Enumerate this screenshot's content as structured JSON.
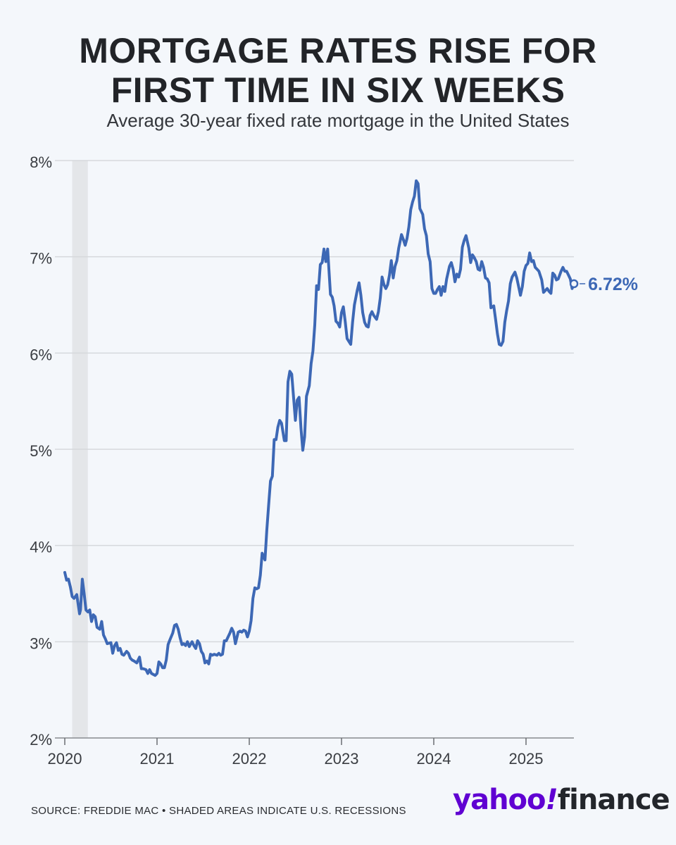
{
  "header": {
    "title_line1": "MORTGAGE RATES RISE FOR",
    "title_line2": "FIRST TIME IN SIX WEEKS",
    "subtitle": "Average 30-year fixed rate mortgage in the United States"
  },
  "footer": {
    "source": "SOURCE: FREDDIE MAC • SHADED AREAS INDICATE U.S. RECESSIONS",
    "logo_yahoo": "yahoo",
    "logo_slash": "!",
    "logo_finance": "finance"
  },
  "colors": {
    "line": "#3d68b5",
    "grid": "#d6d8dc",
    "recession": "#e4e6e9",
    "brand": "#6001d2"
  },
  "chart_data": {
    "type": "line",
    "title": "MORTGAGE RATES RISE FOR FIRST TIME IN SIX WEEKS",
    "subtitle": "Average 30-year fixed rate mortgage in the United States",
    "xlabel": "",
    "ylabel": "",
    "ylim": [
      2,
      8
    ],
    "xlim": [
      2020.0,
      2025.55
    ],
    "grid": "horizontal",
    "y_ticks": [
      {
        "value": 2,
        "label": "2%"
      },
      {
        "value": 3,
        "label": "3%"
      },
      {
        "value": 4,
        "label": "4%"
      },
      {
        "value": 5,
        "label": "5%"
      },
      {
        "value": 6,
        "label": "6%"
      },
      {
        "value": 7,
        "label": "7%"
      },
      {
        "value": 8,
        "label": "8%"
      }
    ],
    "x_ticks": [
      {
        "value": 2020,
        "label": "2020"
      },
      {
        "value": 2021,
        "label": "2021"
      },
      {
        "value": 2022,
        "label": "2022"
      },
      {
        "value": 2023,
        "label": "2023"
      },
      {
        "value": 2024,
        "label": "2024"
      },
      {
        "value": 2025,
        "label": "2025"
      }
    ],
    "recessions": [
      {
        "start": 2020.08,
        "end": 2020.25
      }
    ],
    "end_label": "6.72%",
    "end_value": 6.72,
    "series": [
      {
        "x": [
          2020.0,
          2020.02,
          2020.04,
          2020.06,
          2020.08,
          2020.1,
          2020.13,
          2020.16,
          2020.17,
          2020.19,
          2020.21,
          2020.23,
          2020.25,
          2020.27,
          2020.29,
          2020.31,
          2020.33,
          2020.35,
          2020.38,
          2020.4,
          2020.42,
          2020.44,
          2020.46,
          2020.5,
          2020.52,
          2020.54,
          2020.56,
          2020.58,
          2020.6,
          2020.62,
          2020.64,
          2020.67,
          2020.69,
          2020.71,
          2020.73,
          2020.75,
          2020.78,
          2020.81,
          2020.83,
          2020.85,
          2020.88,
          2020.9,
          2020.92,
          2020.94,
          2020.96,
          2020.98,
          2021.0,
          2021.02,
          2021.04,
          2021.06,
          2021.08,
          2021.1,
          2021.12,
          2021.14,
          2021.17,
          2021.19,
          2021.21,
          2021.23,
          2021.25,
          2021.27,
          2021.29,
          2021.31,
          2021.33,
          2021.35,
          2021.38,
          2021.4,
          2021.42,
          2021.44,
          2021.46,
          2021.48,
          2021.5,
          2021.52,
          2021.54,
          2021.56,
          2021.58,
          2021.6,
          2021.62,
          2021.65,
          2021.67,
          2021.69,
          2021.71,
          2021.73,
          2021.75,
          2021.77,
          2021.79,
          2021.81,
          2021.83,
          2021.85,
          2021.88,
          2021.9,
          2021.92,
          2021.94,
          2021.96,
          2021.98,
          2022.0,
          2022.02,
          2022.04,
          2022.06,
          2022.08,
          2022.1,
          2022.12,
          2022.14,
          2022.17,
          2022.19,
          2022.21,
          2022.23,
          2022.25,
          2022.27,
          2022.29,
          2022.31,
          2022.33,
          2022.35,
          2022.38,
          2022.4,
          2022.42,
          2022.44,
          2022.46,
          2022.48,
          2022.5,
          2022.52,
          2022.54,
          2022.56,
          2022.58,
          2022.6,
          2022.62,
          2022.65,
          2022.67,
          2022.69,
          2022.71,
          2022.73,
          2022.75,
          2022.77,
          2022.79,
          2022.81,
          2022.83,
          2022.85,
          2022.88,
          2022.9,
          2022.92,
          2022.94,
          2022.96,
          2022.98,
          2023.0,
          2023.02,
          2023.04,
          2023.06,
          2023.08,
          2023.1,
          2023.12,
          2023.14,
          2023.17,
          2023.19,
          2023.21,
          2023.23,
          2023.25,
          2023.27,
          2023.29,
          2023.31,
          2023.33,
          2023.35,
          2023.38,
          2023.4,
          2023.42,
          2023.44,
          2023.46,
          2023.48,
          2023.5,
          2023.52,
          2023.54,
          2023.56,
          2023.58,
          2023.6,
          2023.62,
          2023.65,
          2023.67,
          2023.69,
          2023.71,
          2023.73,
          2023.75,
          2023.77,
          2023.79,
          2023.81,
          2023.83,
          2023.85,
          2023.88,
          2023.9,
          2023.92,
          2023.94,
          2023.96,
          2023.98,
          2024.0,
          2024.02,
          2024.04,
          2024.06,
          2024.08,
          2024.1,
          2024.12,
          2024.14,
          2024.17,
          2024.19,
          2024.21,
          2024.23,
          2024.25,
          2024.27,
          2024.29,
          2024.31,
          2024.33,
          2024.35,
          2024.38,
          2024.4,
          2024.42,
          2024.44,
          2024.46,
          2024.48,
          2024.5,
          2024.52,
          2024.54,
          2024.56,
          2024.58,
          2024.6,
          2024.62,
          2024.65,
          2024.67,
          2024.69,
          2024.71,
          2024.73,
          2024.75,
          2024.77,
          2024.79,
          2024.81,
          2024.83,
          2024.85,
          2024.88,
          2024.9,
          2024.92,
          2024.94,
          2024.96,
          2024.98,
          2025.0,
          2025.02,
          2025.04,
          2025.06,
          2025.08,
          2025.1,
          2025.12,
          2025.14,
          2025.17,
          2025.19,
          2025.21,
          2025.23,
          2025.25,
          2025.27,
          2025.29,
          2025.31,
          2025.33,
          2025.35,
          2025.38,
          2025.4,
          2025.42,
          2025.44,
          2025.46,
          2025.48,
          2025.5,
          2025.52
        ],
        "values": [
          3.72,
          3.64,
          3.65,
          3.57,
          3.47,
          3.45,
          3.49,
          3.29,
          3.33,
          3.65,
          3.5,
          3.33,
          3.31,
          3.33,
          3.21,
          3.28,
          3.26,
          3.15,
          3.13,
          3.21,
          3.07,
          3.03,
          2.98,
          2.99,
          2.88,
          2.96,
          2.99,
          2.91,
          2.93,
          2.87,
          2.86,
          2.9,
          2.88,
          2.83,
          2.81,
          2.8,
          2.78,
          2.84,
          2.72,
          2.72,
          2.71,
          2.67,
          2.71,
          2.67,
          2.66,
          2.65,
          2.67,
          2.79,
          2.77,
          2.73,
          2.73,
          2.81,
          2.97,
          3.02,
          3.09,
          3.17,
          3.18,
          3.13,
          3.04,
          2.97,
          2.98,
          2.96,
          3.0,
          2.95,
          3.0,
          2.96,
          2.93,
          3.01,
          2.98,
          2.9,
          2.87,
          2.78,
          2.8,
          2.77,
          2.87,
          2.86,
          2.87,
          2.86,
          2.88,
          2.86,
          2.87,
          3.01,
          3.01,
          3.05,
          3.09,
          3.14,
          3.1,
          2.98,
          3.1,
          3.11,
          3.1,
          3.12,
          3.11,
          3.05,
          3.11,
          3.22,
          3.45,
          3.56,
          3.55,
          3.56,
          3.69,
          3.92,
          3.85,
          4.16,
          4.42,
          4.67,
          4.72,
          5.1,
          5.1,
          5.23,
          5.3,
          5.27,
          5.09,
          5.09,
          5.7,
          5.81,
          5.78,
          5.54,
          5.3,
          5.51,
          5.54,
          5.22,
          4.99,
          5.13,
          5.55,
          5.66,
          5.89,
          6.02,
          6.29,
          6.7,
          6.66,
          6.92,
          6.94,
          7.08,
          6.95,
          7.08,
          6.61,
          6.58,
          6.49,
          6.33,
          6.31,
          6.27,
          6.42,
          6.48,
          6.33,
          6.15,
          6.12,
          6.09,
          6.32,
          6.5,
          6.65,
          6.73,
          6.6,
          6.42,
          6.32,
          6.28,
          6.27,
          6.39,
          6.43,
          6.39,
          6.35,
          6.43,
          6.57,
          6.79,
          6.71,
          6.67,
          6.71,
          6.81,
          6.96,
          6.78,
          6.9,
          6.96,
          7.09,
          7.23,
          7.18,
          7.12,
          7.19,
          7.31,
          7.49,
          7.57,
          7.63,
          7.79,
          7.76,
          7.5,
          7.44,
          7.29,
          7.22,
          7.03,
          6.95,
          6.67,
          6.62,
          6.62,
          6.66,
          6.69,
          6.6,
          6.69,
          6.64,
          6.77,
          6.9,
          6.94,
          6.87,
          6.74,
          6.82,
          6.79,
          6.87,
          7.1,
          7.17,
          7.22,
          7.09,
          6.94,
          7.02,
          6.99,
          6.95,
          6.87,
          6.86,
          6.95,
          6.89,
          6.78,
          6.77,
          6.73,
          6.47,
          6.49,
          6.35,
          6.2,
          6.09,
          6.08,
          6.12,
          6.32,
          6.44,
          6.54,
          6.72,
          6.79,
          6.84,
          6.78,
          6.69,
          6.6,
          6.69,
          6.85,
          6.91,
          6.93,
          7.04,
          6.95,
          6.96,
          6.89,
          6.87,
          6.85,
          6.76,
          6.63,
          6.65,
          6.67,
          6.64,
          6.62,
          6.83,
          6.81,
          6.76,
          6.77,
          6.85,
          6.89,
          6.85,
          6.85,
          6.81,
          6.77,
          6.67,
          6.72
        ]
      }
    ]
  }
}
